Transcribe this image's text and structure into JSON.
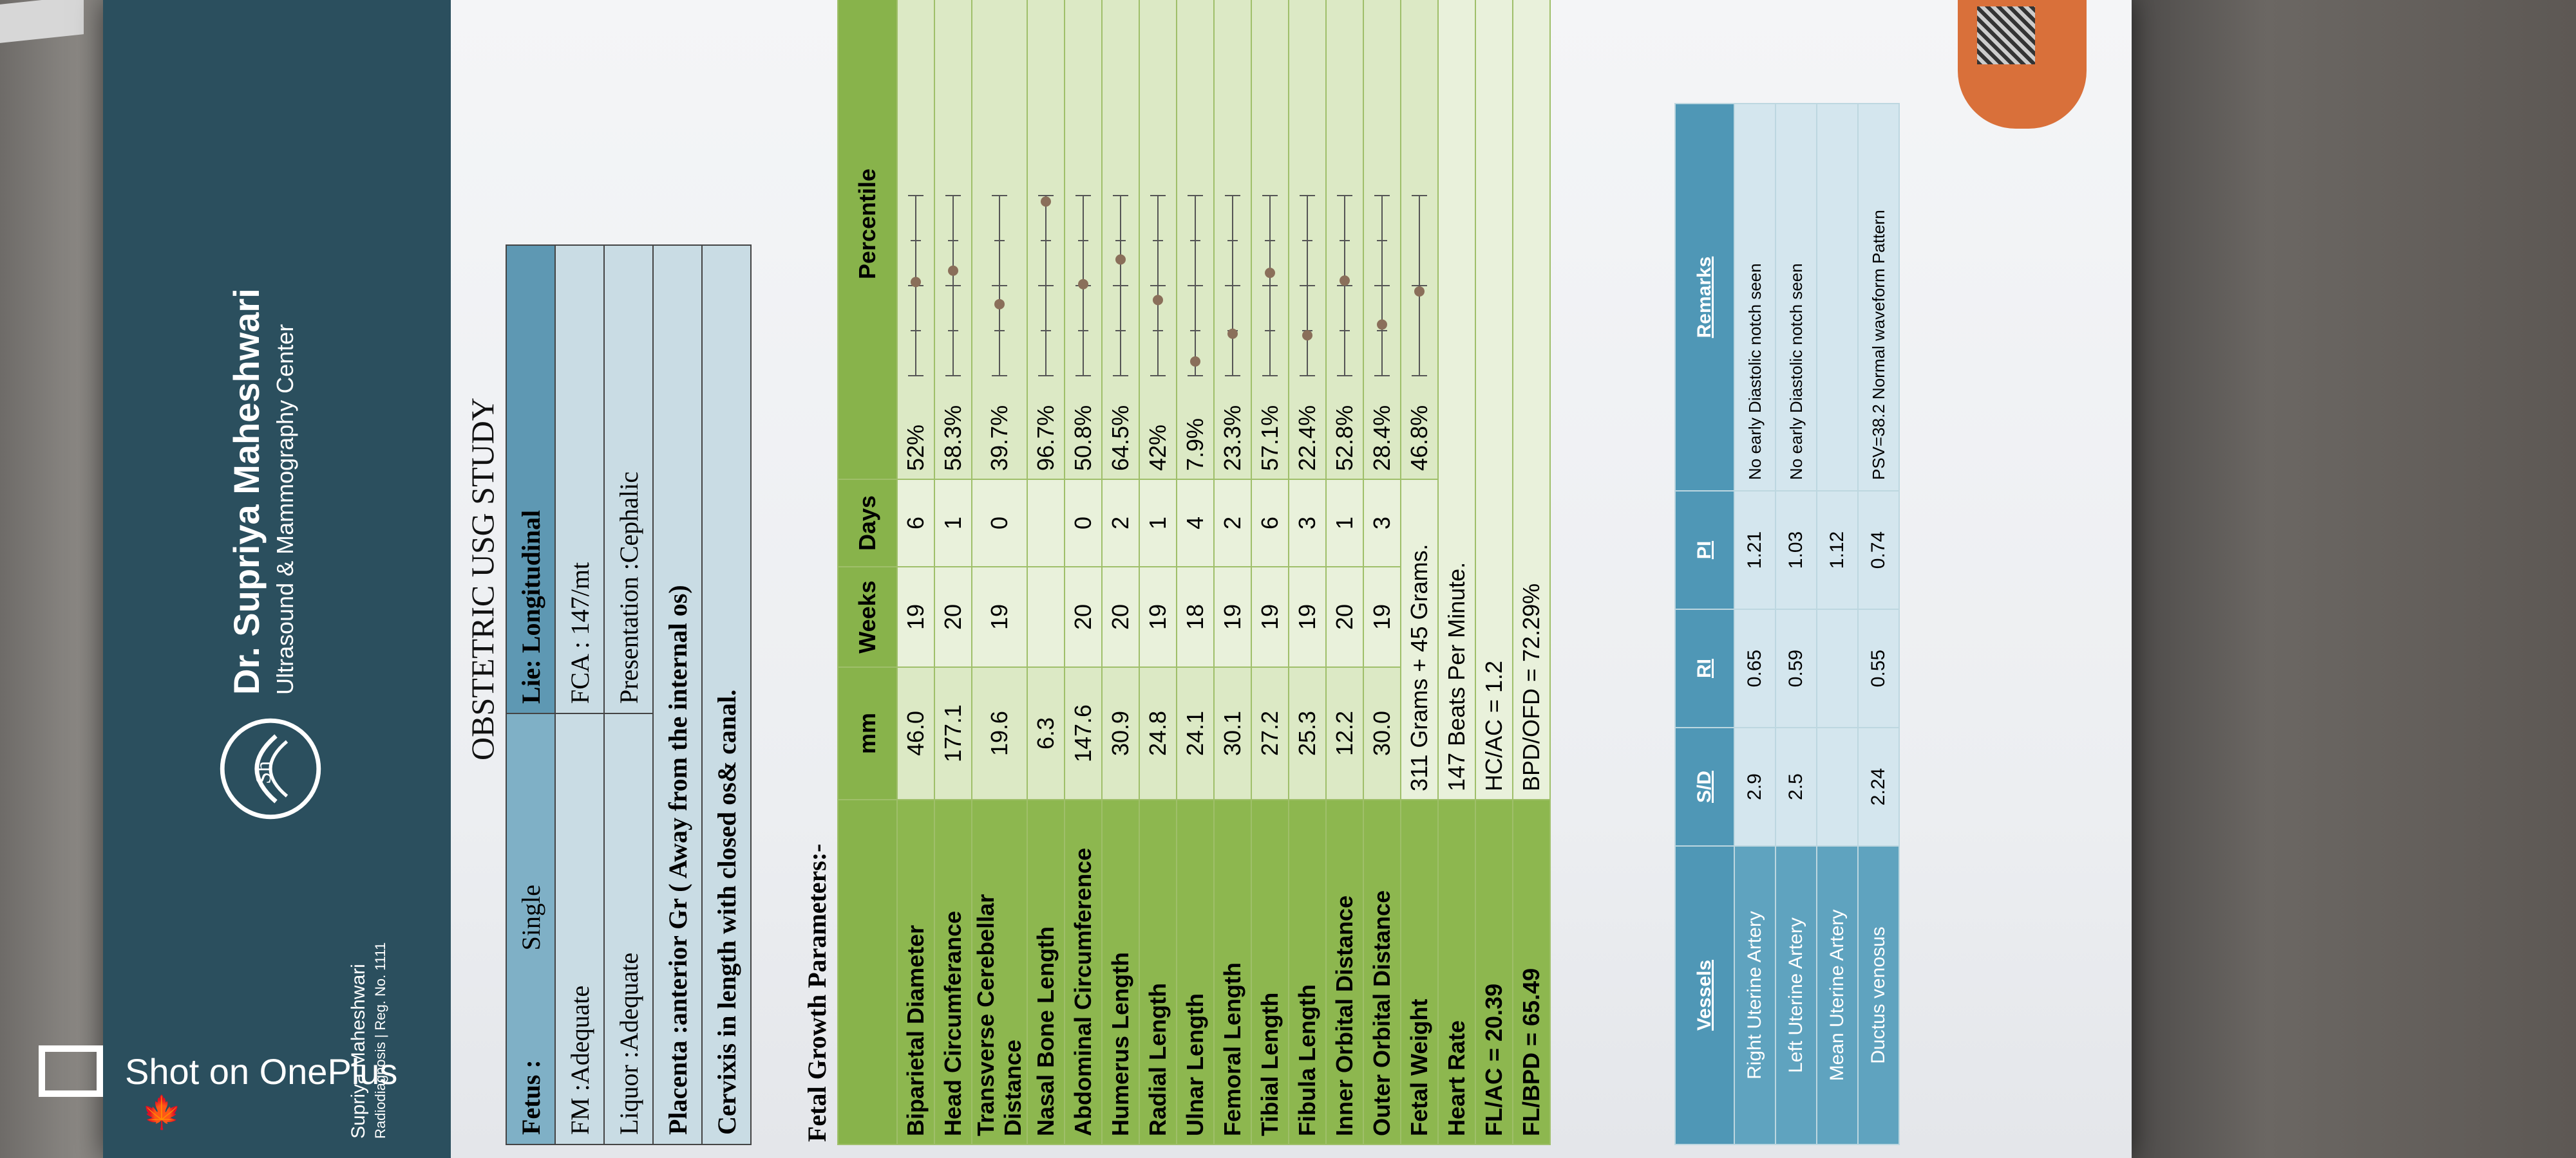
{
  "brand": {
    "name": "Dr. Supriya Maheshwari",
    "subtitle": "Ultrasound & Mammography Center",
    "doctor": "Supriya Maheshwari",
    "reg": "Radiodiagnosis | Reg. No. 1111"
  },
  "report": {
    "title": "OBSTETRIC USG STUDY",
    "fetus_label": "Fetus :",
    "fetus_value": "Single",
    "lie": "Lie: Longitudinal",
    "fm": "FM :Adequate",
    "fca": "FCA : 147/mt",
    "liquor": "Liquor :Adequate",
    "presentation": "Presentation :Cephalic",
    "placenta": "Placenta :anterior Gr ( Away from the internal os)",
    "cervix": "Cervixis in length with closed os& canal."
  },
  "growth": {
    "title": "Fetal Growth Parameters:-",
    "headers": [
      "",
      "mm",
      "Weeks",
      "Days",
      "Percentile"
    ],
    "rows": [
      {
        "name": "Biparietal Diameter",
        "mm": "46.0",
        "weeks": "19",
        "days": "6",
        "pct": "52%",
        "pct_val": 52
      },
      {
        "name": "Head Circumferance",
        "mm": "177.1",
        "weeks": "20",
        "days": "1",
        "pct": "58.3%",
        "pct_val": 58.3
      },
      {
        "name": "Transverse Cerebellar Distance",
        "mm": "19.6",
        "weeks": "19",
        "days": "0",
        "pct": "39.7%",
        "pct_val": 39.7
      },
      {
        "name": "Nasal Bone Length",
        "mm": "6.3",
        "weeks": "",
        "days": "",
        "pct": "96.7%",
        "pct_val": 96.7
      },
      {
        "name": "Abdominal Circumference",
        "mm": "147.6",
        "weeks": "20",
        "days": "0",
        "pct": "50.8%",
        "pct_val": 50.8
      },
      {
        "name": "Humerus Length",
        "mm": "30.9",
        "weeks": "20",
        "days": "2",
        "pct": "64.5%",
        "pct_val": 64.5
      },
      {
        "name": "Radial Length",
        "mm": "24.8",
        "weeks": "19",
        "days": "1",
        "pct": "42%",
        "pct_val": 42
      },
      {
        "name": "Ulnar Length",
        "mm": "24.1",
        "weeks": "18",
        "days": "4",
        "pct": "7.9%",
        "pct_val": 7.9
      },
      {
        "name": "Femoral Length",
        "mm": "30.1",
        "weeks": "19",
        "days": "2",
        "pct": "23.3%",
        "pct_val": 23.3
      },
      {
        "name": "Tibial Length",
        "mm": "27.2",
        "weeks": "19",
        "days": "6",
        "pct": "57.1%",
        "pct_val": 57.1
      },
      {
        "name": "Fibula Length",
        "mm": "25.3",
        "weeks": "19",
        "days": "3",
        "pct": "22.4%",
        "pct_val": 22.4
      },
      {
        "name": "Inner Orbital Distance",
        "mm": "12.2",
        "weeks": "20",
        "days": "1",
        "pct": "52.8%",
        "pct_val": 52.8
      },
      {
        "name": "Outer Orbital Distance",
        "mm": "30.0",
        "weeks": "19",
        "days": "3",
        "pct": "28.4%",
        "pct_val": 28.4
      }
    ],
    "fetal_weight_label": "Fetal Weight",
    "fetal_weight": "311 Grams + 45 Grams.",
    "fetal_weight_pct": "46.8%",
    "fetal_weight_pct_val": 46.8,
    "heart_rate_label": "Heart Rate",
    "heart_rate": "147 Beats Per Minute.",
    "fl_ac": "FL/AC = 20.39",
    "hc_ac": "HC/AC = 1.2",
    "fl_bpd": "FL/BPD = 65.49",
    "bpd_ofd": "BPD/OFD = 72.29%"
  },
  "doppler": {
    "headers": [
      "Vessels",
      "S/D",
      "RI",
      "PI",
      "Remarks"
    ],
    "rows": [
      {
        "vessel": "Right Uterine Artery",
        "sd": "2.9",
        "ri": "0.65",
        "pi": "1.21",
        "remarks": "No early Diastolic notch seen"
      },
      {
        "vessel": "Left Uterine Artery",
        "sd": "2.5",
        "ri": "0.59",
        "pi": "1.03",
        "remarks": "No early Diastolic notch seen"
      },
      {
        "vessel": "Mean Uterine Artery",
        "sd": "",
        "ri": "",
        "pi": "1.12",
        "remarks": ""
      },
      {
        "vessel": "Ductus venosus",
        "sd": "2.24",
        "ri": "0.55",
        "pi": "0.74",
        "remarks": "PSV=38.2 Normal waveform Pattern"
      }
    ]
  },
  "watermark": {
    "text": "Shot on OnePlus"
  }
}
